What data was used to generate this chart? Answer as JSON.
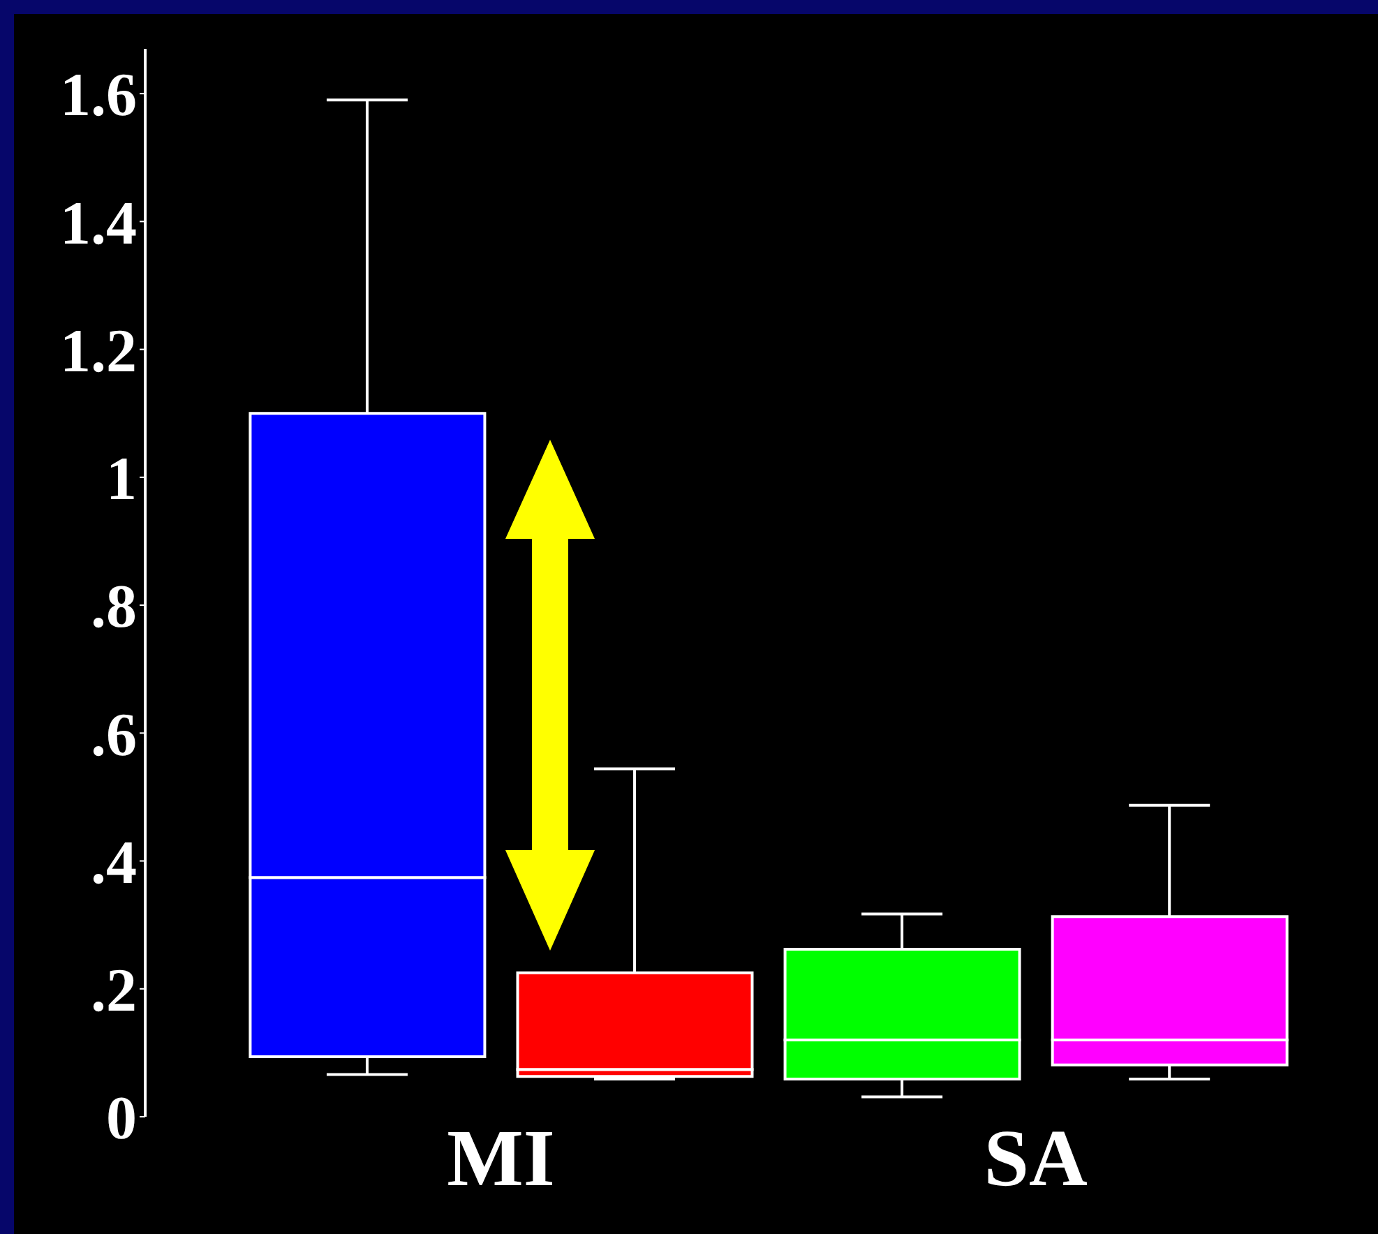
{
  "chart_data": {
    "type": "box",
    "categories": [
      "MI",
      "SA"
    ],
    "series": [
      {
        "colors": [
          "#0000ff",
          "#00ff00"
        ],
        "boxes": [
          {
            "low": 0.066,
            "q1": 0.094,
            "median": 0.374,
            "q3": 1.1,
            "high": 1.59
          },
          {
            "low": 0.031,
            "q1": 0.059,
            "median": 0.12,
            "q3": 0.262,
            "high": 0.317
          }
        ]
      },
      {
        "colors": [
          "#ff0000",
          "#ff00ff"
        ],
        "boxes": [
          {
            "low": 0.059,
            "q1": 0.063,
            "median": 0.074,
            "q3": 0.225,
            "high": 0.544
          },
          {
            "low": 0.059,
            "q1": 0.081,
            "median": 0.12,
            "q3": 0.313,
            "high": 0.487
          }
        ]
      }
    ],
    "ylim": [
      0,
      1.67
    ],
    "yticks": [
      {
        "value": 0,
        "label": "0"
      },
      {
        "value": 0.2,
        "label": ".2"
      },
      {
        "value": 0.4,
        "label": ".4"
      },
      {
        "value": 0.6,
        "label": ".6"
      },
      {
        "value": 0.8,
        "label": ".8"
      },
      {
        "value": 1,
        "label": "1"
      },
      {
        "value": 1.2,
        "label": "1.2"
      },
      {
        "value": 1.4,
        "label": "1.4"
      },
      {
        "value": 1.6,
        "label": "1.6"
      }
    ]
  }
}
